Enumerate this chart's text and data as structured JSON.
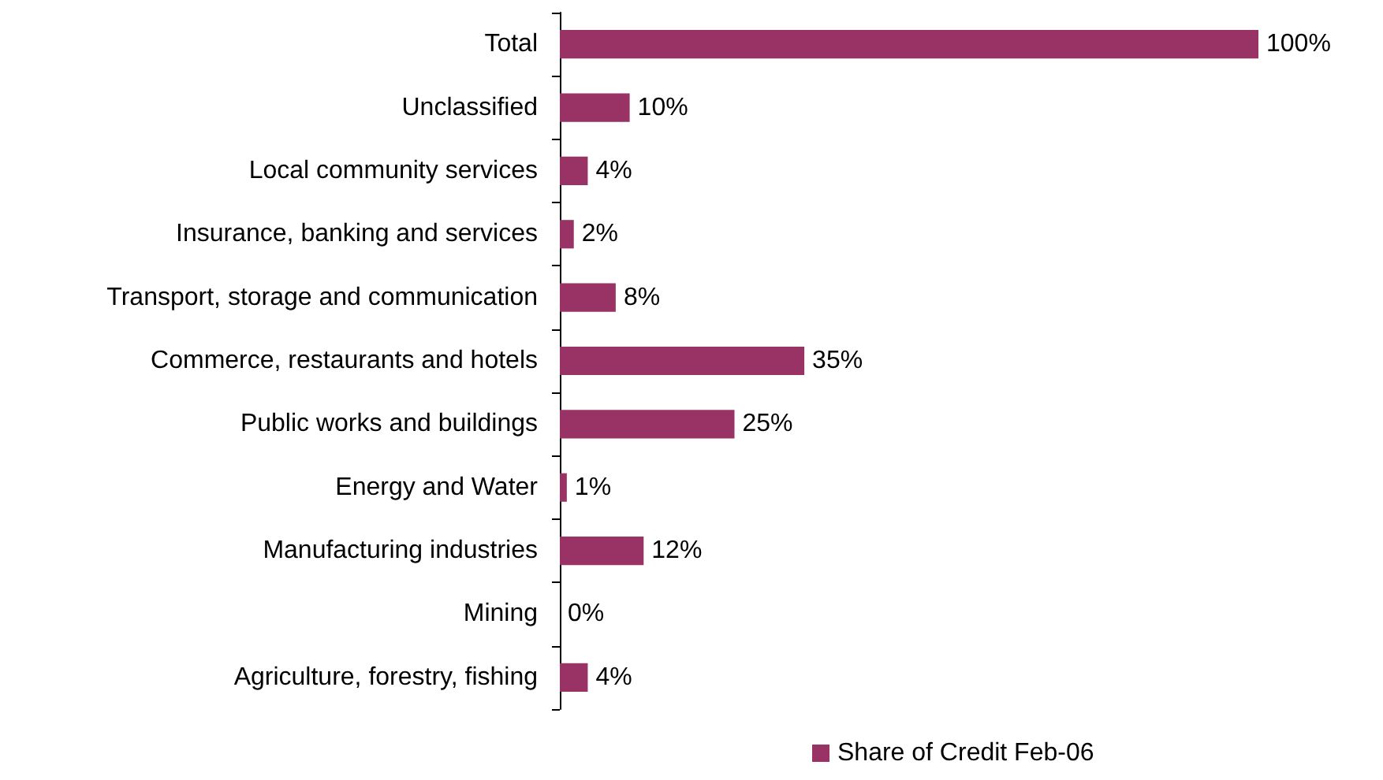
{
  "chart_data": {
    "type": "bar",
    "orientation": "horizontal",
    "categories": [
      "Total",
      "Unclassified",
      "Local community services",
      "Insurance, banking and services",
      "Transport, storage and communication",
      "Commerce, restaurants and hotels",
      "Public works and buildings",
      "Energy and Water",
      "Manufacturing industries",
      "Mining",
      "Agriculture, forestry, fishing"
    ],
    "series": [
      {
        "name": "Share of Credit Feb-06",
        "color": "#993366",
        "values": [
          100,
          10,
          4,
          2,
          8,
          35,
          25,
          1,
          12,
          0,
          4
        ],
        "value_labels": [
          "100%",
          "10%",
          "4%",
          "2%",
          "8%",
          "35%",
          "25%",
          "1%",
          "12%",
          "0%",
          "4%"
        ]
      }
    ],
    "xlim": [
      0,
      100
    ],
    "tick_labels": "y",
    "grid": false,
    "legend": "bottom"
  }
}
